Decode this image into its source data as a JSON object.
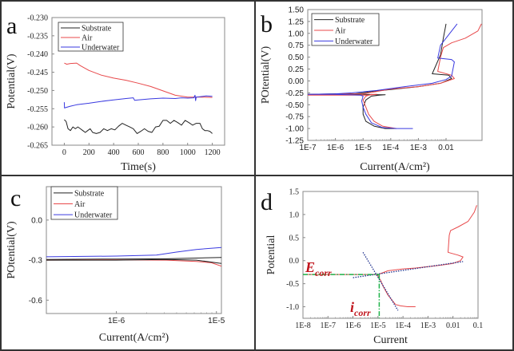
{
  "figure": {
    "colors": {
      "substrate": "#222222",
      "air": "#e8494b",
      "underwater": "#3a3ae0",
      "frame": "#888888",
      "border": "#333333",
      "annot_red": "#c0141c",
      "annot_green": "#1fb34a",
      "annot_blue": "#1d2f8c"
    }
  },
  "chart_data": [
    {
      "id": "a",
      "type": "line",
      "panel_letter": "a",
      "title": "",
      "xlabel": "Time(s)",
      "ylabel": "Potential(V)",
      "xlim": [
        -100,
        1300
      ],
      "ylim": [
        -0.265,
        -0.23
      ],
      "x_scale": "linear",
      "xticks": [
        0,
        200,
        400,
        600,
        800,
        1000,
        1200
      ],
      "xtick_labels": [
        "0",
        "200",
        "400",
        "600",
        "800",
        "1000",
        "1200"
      ],
      "yticks": [
        -0.265,
        -0.26,
        -0.255,
        -0.25,
        -0.245,
        -0.24,
        -0.235,
        -0.23
      ],
      "ytick_labels": [
        "-0.265",
        "-0.260",
        "-0.255",
        "-0.250",
        "-0.245",
        "-0.240",
        "-0.235",
        "-0.230"
      ],
      "legend": {
        "placement": "top-left",
        "entries": [
          "Substrate",
          "Air",
          "Underwater"
        ]
      },
      "series": [
        {
          "name": "Substrate",
          "color_key": "substrate",
          "x": [
            0,
            15,
            30,
            50,
            70,
            90,
            110,
            130,
            150,
            170,
            190,
            210,
            230,
            260,
            290,
            320,
            350,
            380,
            410,
            440,
            470,
            500,
            530,
            560,
            590,
            620,
            650,
            680,
            710,
            740,
            770,
            800,
            830,
            860,
            890,
            920,
            950,
            980,
            1010,
            1040,
            1070,
            1100,
            1120,
            1140,
            1160,
            1180,
            1200
          ],
          "y": [
            -0.258,
            -0.2585,
            -0.2605,
            -0.261,
            -0.26,
            -0.2605,
            -0.26,
            -0.2605,
            -0.261,
            -0.2615,
            -0.261,
            -0.2605,
            -0.2615,
            -0.2618,
            -0.2615,
            -0.2605,
            -0.261,
            -0.2605,
            -0.2608,
            -0.2598,
            -0.259,
            -0.2595,
            -0.26,
            -0.2605,
            -0.2618,
            -0.2612,
            -0.2605,
            -0.2612,
            -0.2615,
            -0.26,
            -0.2598,
            -0.2582,
            -0.2582,
            -0.259,
            -0.2582,
            -0.2588,
            -0.2595,
            -0.2582,
            -0.2588,
            -0.2595,
            -0.259,
            -0.259,
            -0.2605,
            -0.261,
            -0.261,
            -0.2612,
            -0.2618
          ]
        },
        {
          "name": "Air",
          "color_key": "air",
          "x": [
            0,
            20,
            50,
            100,
            130,
            200,
            300,
            400,
            500,
            600,
            700,
            800,
            900,
            1000,
            1100,
            1200
          ],
          "y": [
            -0.2425,
            -0.2428,
            -0.2426,
            -0.2425,
            -0.2432,
            -0.2445,
            -0.2458,
            -0.2466,
            -0.2472,
            -0.248,
            -0.2489,
            -0.2501,
            -0.2513,
            -0.2518,
            -0.2518,
            -0.2519
          ]
        },
        {
          "name": "Underwater",
          "color_key": "underwater",
          "x": [
            0,
            2,
            10,
            50,
            100,
            200,
            300,
            400,
            500,
            560,
            570,
            600,
            700,
            800,
            900,
            950,
            1000,
            1050,
            1060,
            1065,
            1070,
            1100,
            1150,
            1200
          ],
          "y": [
            -0.2532,
            -0.2548,
            -0.2547,
            -0.2543,
            -0.2539,
            -0.2535,
            -0.253,
            -0.2526,
            -0.2522,
            -0.252,
            -0.2527,
            -0.2526,
            -0.2523,
            -0.2521,
            -0.2522,
            -0.252,
            -0.2521,
            -0.252,
            -0.2513,
            -0.2528,
            -0.2518,
            -0.2517,
            -0.2515,
            -0.2516
          ]
        }
      ]
    },
    {
      "id": "b",
      "type": "line",
      "panel_letter": "b",
      "title": "",
      "xlabel": "Current(A/cm²)",
      "ylabel": "POtential(V)",
      "x_scale": "log",
      "xlim_log10": [
        -7,
        -0.7
      ],
      "ylim": [
        -1.25,
        1.5
      ],
      "xticks_log10": [
        -7,
        -6,
        -5,
        -4,
        -3,
        -2
      ],
      "xtick_labels": [
        "1E-7",
        "1E-6",
        "1E-5",
        "1E-4",
        "1E-3",
        "0.01"
      ],
      "yticks": [
        -1.25,
        -1.0,
        -0.75,
        -0.5,
        -0.25,
        0.0,
        0.25,
        0.5,
        0.75,
        1.0,
        1.25,
        1.5
      ],
      "ytick_labels": [
        "-1.25",
        "-1.00",
        "-0.75",
        "-0.50",
        "-0.25",
        "0.00",
        "0.25",
        "0.50",
        "0.75",
        "1.00",
        "1.25",
        "1.50"
      ],
      "legend": {
        "placement": "top-left",
        "entries": [
          "Substrate",
          "Air",
          "Underwater"
        ]
      },
      "series": [
        {
          "name": "Substrate",
          "color_key": "substrate",
          "log10_x": [
            -3.8,
            -4.2,
            -4.6,
            -4.9,
            -5.0,
            -5.0,
            -4.9,
            -4.7,
            -4.4,
            -4.2,
            -4.5,
            -4.9,
            -5.2,
            -6.0,
            -7.0,
            -6.0,
            -5.3,
            -5.0,
            -4.7,
            -4.0,
            -3.0,
            -2.2,
            -1.8,
            -1.9,
            -2.5,
            -2.2,
            -2.1,
            -2.0
          ],
          "y": [
            -1.0,
            -1.0,
            -0.95,
            -0.85,
            -0.7,
            -0.55,
            -0.4,
            -0.32,
            -0.3,
            -0.29,
            -0.29,
            -0.28,
            -0.28,
            -0.28,
            -0.28,
            -0.27,
            -0.27,
            -0.25,
            -0.22,
            -0.18,
            -0.12,
            -0.05,
            0.05,
            0.12,
            0.15,
            0.55,
            0.9,
            1.2
          ]
        },
        {
          "name": "Air",
          "color_key": "air",
          "log10_x": [
            -3.8,
            -4.3,
            -4.6,
            -4.8,
            -4.9,
            -5.0,
            -4.9,
            -4.7,
            -4.5,
            -4.8,
            -5.5,
            -6.5,
            -7.0,
            -6.0,
            -5.0,
            -4.5,
            -4.0,
            -3.0,
            -2.2,
            -1.7,
            -1.8,
            -2.3,
            -2.2,
            -2.1,
            -1.8,
            -1.3,
            -0.85,
            -0.72
          ],
          "y": [
            -1.0,
            -0.95,
            -0.85,
            -0.7,
            -0.55,
            -0.4,
            -0.32,
            -0.28,
            -0.28,
            -0.3,
            -0.3,
            -0.3,
            -0.3,
            -0.28,
            -0.27,
            -0.22,
            -0.17,
            -0.12,
            -0.05,
            0.05,
            0.12,
            0.2,
            0.5,
            0.7,
            0.8,
            0.9,
            1.05,
            1.2
          ]
        },
        {
          "name": "Underwater",
          "color_key": "underwater",
          "log10_x": [
            -3.2,
            -3.8,
            -4.3,
            -4.7,
            -4.9,
            -5.0,
            -5.05,
            -5.0,
            -5.1,
            -5.5,
            -6.0,
            -7.0,
            -6.0,
            -5.4,
            -4.5,
            -3.5,
            -2.5,
            -2.0,
            -1.8,
            -1.7,
            -1.8,
            -2.3,
            -2.2,
            -2.0,
            -1.6
          ],
          "y": [
            -1.0,
            -1.0,
            -0.98,
            -0.88,
            -0.7,
            -0.55,
            -0.42,
            -0.32,
            -0.3,
            -0.29,
            -0.28,
            -0.28,
            -0.27,
            -0.25,
            -0.2,
            -0.12,
            -0.05,
            0.03,
            0.1,
            0.4,
            0.45,
            0.48,
            0.75,
            0.9,
            1.2
          ]
        }
      ]
    },
    {
      "id": "c",
      "type": "line",
      "panel_letter": "c",
      "title": "",
      "xlabel": "Current(A/cm²)",
      "ylabel": "POtential(V)",
      "x_scale": "log",
      "xlim_log10": [
        -6.7,
        -4.95
      ],
      "ylim": [
        -0.7,
        0.25
      ],
      "xticks_log10": [
        -6,
        -5
      ],
      "xtick_labels": [
        "1E-6",
        "1E-5"
      ],
      "yticks": [
        -0.6,
        -0.3,
        0.0
      ],
      "ytick_labels": [
        "-0.6",
        "-0.3",
        "0.0"
      ],
      "legend": {
        "placement": "top-left",
        "entries": [
          "Substrate",
          "Air",
          "Underwater"
        ]
      },
      "series": [
        {
          "name": "Substrate",
          "color_key": "substrate",
          "log10_x": [
            -6.7,
            -6.0,
            -5.5,
            -5.2,
            -4.95
          ],
          "y": [
            -0.295,
            -0.292,
            -0.29,
            -0.285,
            -0.28
          ]
        },
        {
          "name": "Air",
          "color_key": "air",
          "log10_x": [
            -6.7,
            -6.0,
            -5.5,
            -5.2,
            -5.05,
            -4.95
          ],
          "y": [
            -0.3,
            -0.298,
            -0.3,
            -0.31,
            -0.32,
            -0.345
          ]
        },
        {
          "name": "Underwater",
          "color_key": "underwater",
          "log10_x": [
            -6.7,
            -6.0,
            -5.6,
            -5.4,
            -5.2,
            -4.95
          ],
          "y": [
            -0.275,
            -0.27,
            -0.262,
            -0.24,
            -0.22,
            -0.205
          ]
        },
        {
          "name": "Substrate (lower branch)",
          "color_key": "substrate",
          "log10_x": [
            -6.7,
            -6.0,
            -5.5,
            -5.2,
            -4.95
          ],
          "y": [
            -0.3,
            -0.3,
            -0.295,
            -0.3,
            -0.325
          ]
        }
      ]
    },
    {
      "id": "d",
      "type": "line",
      "panel_letter": "d",
      "title": "",
      "xlabel": "Current",
      "ylabel": "Potential",
      "x_scale": "log",
      "xlim_log10": [
        -8,
        -1
      ],
      "ylim": [
        -1.25,
        1.5
      ],
      "xticks_log10": [
        -8,
        -7,
        -6,
        -5,
        -4,
        -3,
        -2,
        -1
      ],
      "xtick_labels": [
        "1E-8",
        "1E-7",
        "1E-6",
        "1E-5",
        "1E-4",
        "1E-3",
        "0.01",
        "0.1"
      ],
      "yticks": [
        -1.0,
        -0.5,
        0.0,
        0.5,
        1.0,
        1.5
      ],
      "ytick_labels": [
        "-1.0",
        "-0.5",
        "0.0",
        "0.5",
        "1.0",
        "1.5"
      ],
      "annotations": [
        {
          "text_main": "E",
          "text_sub": "corr",
          "meaning": "corrosion potential",
          "color_key": "annot_red"
        },
        {
          "text_main": "i",
          "text_sub": "corr",
          "meaning": "corrosion current density",
          "color_key": "annot_red"
        }
      ],
      "series": [
        {
          "name": "Air",
          "color_key": "air",
          "log10_x": [
            -3.5,
            -3.8,
            -4.1,
            -4.3,
            -4.6,
            -4.8,
            -4.9,
            -5.0,
            -5.0,
            -5.3,
            -6.0,
            -7.0,
            -8.0
          ],
          "y": [
            -1.0,
            -1.0,
            -0.98,
            -0.95,
            -0.75,
            -0.55,
            -0.42,
            -0.35,
            -0.3,
            -0.3,
            -0.3,
            -0.3,
            -0.3
          ]
        },
        {
          "name": "Air (anodic)",
          "color_key": "air",
          "log10_x": [
            -5.0,
            -4.6,
            -4.3,
            -4.0,
            -3.5,
            -3.0,
            -2.5,
            -2.0,
            -1.7,
            -1.6,
            -1.8,
            -2.2,
            -2.15,
            -2.1,
            -1.8,
            -1.4,
            -1.15,
            -1.05
          ],
          "y": [
            -0.3,
            -0.22,
            -0.2,
            -0.18,
            -0.16,
            -0.13,
            -0.1,
            -0.06,
            0.0,
            0.08,
            0.12,
            0.18,
            0.55,
            0.65,
            0.73,
            0.85,
            1.05,
            1.2
          ]
        },
        {
          "name": "Tafel fit (anodic)",
          "color_key": "annot_blue",
          "dotted": true,
          "log10_x": [
            -6.0,
            -1.6
          ],
          "y": [
            -0.37,
            -0.02
          ]
        },
        {
          "name": "Tafel fit (cathodic)",
          "color_key": "annot_blue",
          "dotted": true,
          "log10_x": [
            -5.6,
            -4.2
          ],
          "y": [
            0.18,
            -1.08
          ]
        },
        {
          "name": "Ecorr line",
          "color_key": "annot_green",
          "dashed": true,
          "log10_x": [
            -8.0,
            -4.95
          ],
          "y": [
            -0.3,
            -0.3
          ]
        },
        {
          "name": "icorr line",
          "color_key": "annot_green",
          "dashed": true,
          "log10_x": [
            -4.95,
            -4.95
          ],
          "y": [
            -0.3,
            -1.25
          ]
        }
      ]
    }
  ]
}
